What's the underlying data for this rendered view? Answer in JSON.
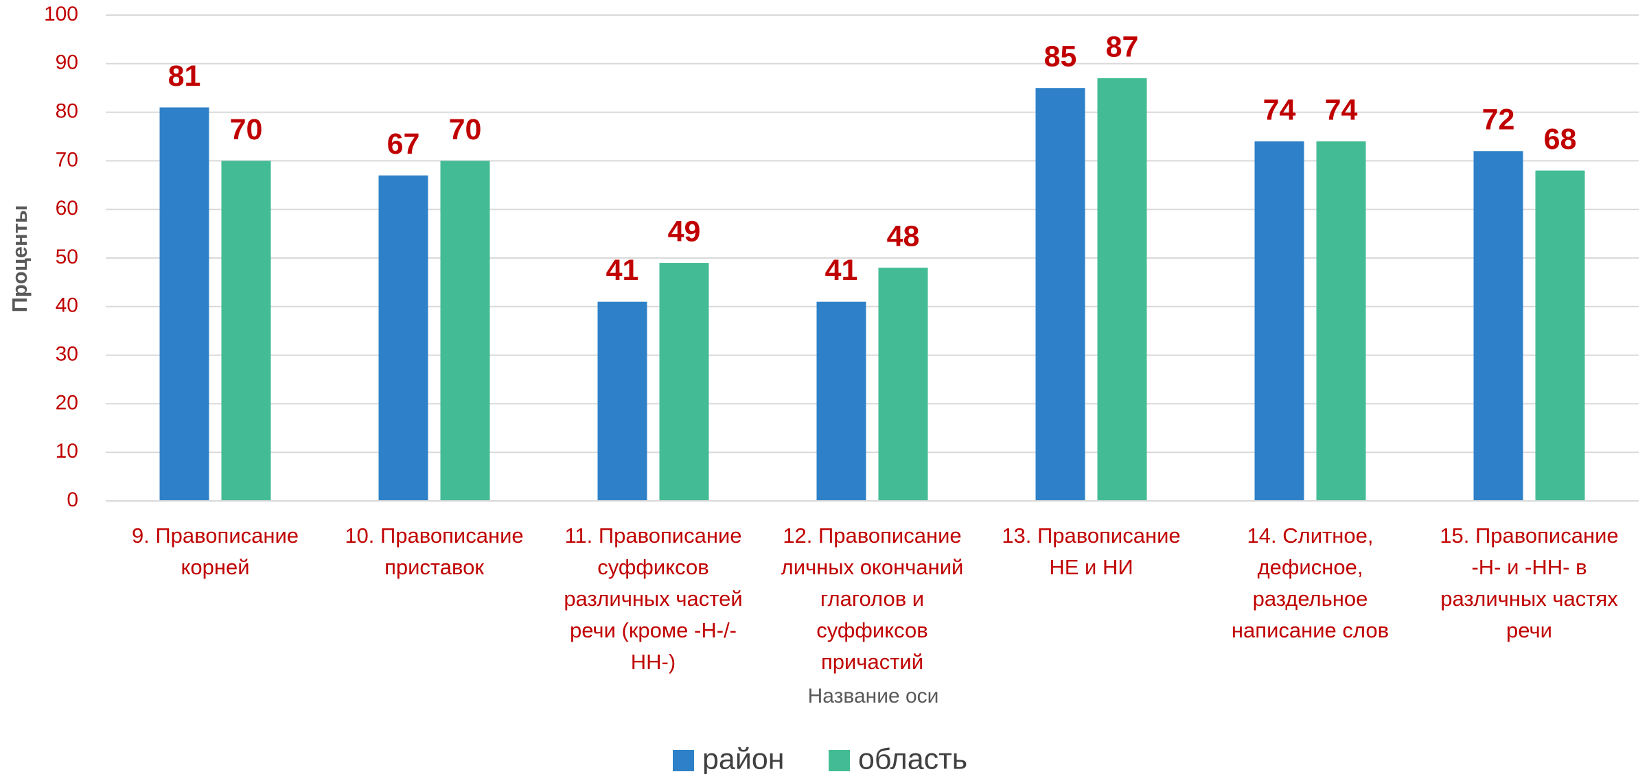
{
  "chart_data": {
    "type": "bar",
    "x_label": "Название оси",
    "y_label": "Проценты",
    "categories": [
      "9. Правописание корней",
      "10. Правописание приставок",
      "11. Правописание суффиксов различных частей речи (кроме -Н-/-НН-)",
      "12. Правописание личных окончаний глаголов и суффиксов причастий",
      "13. Правописание НЕ и НИ",
      "14. Слитное, дефисное, раздельное написание слов",
      "15. Правописание -Н- и -НН- в различных частях речи"
    ],
    "series": [
      {
        "name": "район",
        "color": "#2e81c8",
        "values": [
          81,
          67,
          41,
          41,
          85,
          74,
          72
        ]
      },
      {
        "name": "область",
        "color": "#43bb95",
        "values": [
          70,
          70,
          49,
          48,
          87,
          74,
          68
        ]
      }
    ],
    "ylim": [
      0,
      100
    ],
    "yticks": [
      0,
      10,
      20,
      30,
      40,
      50,
      60,
      70,
      80,
      90,
      100
    ],
    "grid": true,
    "legend": "bottom"
  }
}
